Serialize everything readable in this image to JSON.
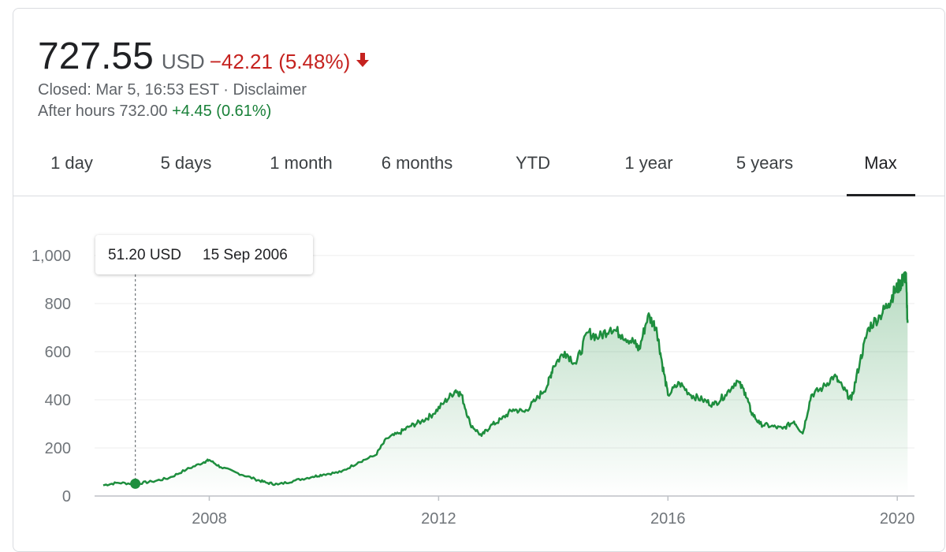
{
  "header": {
    "price": "727.55",
    "currency": "USD",
    "change": "−42.21 (5.48%)",
    "change_color": "#c5221f",
    "arrow_icon": "arrow-down-icon",
    "closed_text": "Closed: Mar 5, 16:53 EST",
    "separator": " · ",
    "disclaimer": "Disclaimer",
    "after_hours_label": "After hours 732.00",
    "after_hours_change": "+4.45 (0.61%)",
    "positive_color": "#188038"
  },
  "tabs": [
    {
      "label": "1 day"
    },
    {
      "label": "5 days"
    },
    {
      "label": "1 month"
    },
    {
      "label": "6 months"
    },
    {
      "label": "YTD"
    },
    {
      "label": "1 year"
    },
    {
      "label": "5 years"
    },
    {
      "label": "Max",
      "active": true
    }
  ],
  "tooltip": {
    "value": "51.20 USD",
    "date": "15 Sep 2006"
  },
  "chart_data": {
    "type": "area",
    "line_color": "#1e8e3e",
    "ylim": [
      0,
      1000
    ],
    "y_ticks": [
      {
        "value": 0,
        "label": "0"
      },
      {
        "value": 200,
        "label": "200"
      },
      {
        "value": 400,
        "label": "400"
      },
      {
        "value": 600,
        "label": "600"
      },
      {
        "value": 800,
        "label": "800"
      },
      {
        "value": 1000,
        "label": "1,000"
      }
    ],
    "xlim": [
      2006.0,
      2020.3
    ],
    "x_ticks": [
      {
        "value": 2008,
        "label": "2008"
      },
      {
        "value": 2012,
        "label": "2012"
      },
      {
        "value": 2016,
        "label": "2016"
      },
      {
        "value": 2020,
        "label": "2020"
      }
    ],
    "grid": true,
    "highlight": {
      "x": 2006.71,
      "y": 51.2
    },
    "series": [
      {
        "x": [
          2006.15,
          2006.4,
          2006.71,
          2007.0,
          2007.3,
          2007.6,
          2007.9,
          2008.0,
          2008.2,
          2008.5,
          2008.8,
          2009.0,
          2009.2,
          2009.5,
          2009.8,
          2010.0,
          2010.3,
          2010.6,
          2010.9,
          2011.1,
          2011.3,
          2011.5,
          2011.7,
          2011.9,
          2012.1,
          2012.3,
          2012.4,
          2012.55,
          2012.75,
          2012.9,
          2013.1,
          2013.3,
          2013.5,
          2013.7,
          2013.9,
          2014.0,
          2014.2,
          2014.4,
          2014.6,
          2014.8,
          2015.0,
          2015.2,
          2015.4,
          2015.5,
          2015.65,
          2015.8,
          2015.9,
          2016.0,
          2016.2,
          2016.4,
          2016.6,
          2016.8,
          2017.0,
          2017.2,
          2017.35,
          2017.45,
          2017.6,
          2017.8,
          2018.0,
          2018.2,
          2018.35,
          2018.5,
          2018.7,
          2018.9,
          2019.05,
          2019.2,
          2019.35,
          2019.5,
          2019.7,
          2019.85,
          2019.95,
          2020.05,
          2020.1,
          2020.15,
          2020.18
        ],
        "y": [
          45,
          55,
          51,
          60,
          75,
          110,
          140,
          150,
          120,
          95,
          70,
          55,
          48,
          65,
          80,
          90,
          100,
          140,
          170,
          240,
          260,
          290,
          310,
          340,
          390,
          440,
          420,
          300,
          250,
          290,
          320,
          360,
          350,
          400,
          460,
          540,
          600,
          550,
          680,
          660,
          700,
          670,
          640,
          610,
          750,
          700,
          550,
          420,
          470,
          420,
          400,
          380,
          420,
          480,
          430,
          350,
          300,
          290,
          280,
          310,
          260,
          420,
          450,
          500,
          450,
          400,
          560,
          700,
          750,
          800,
          850,
          880,
          900,
          920,
          720
        ]
      }
    ]
  }
}
